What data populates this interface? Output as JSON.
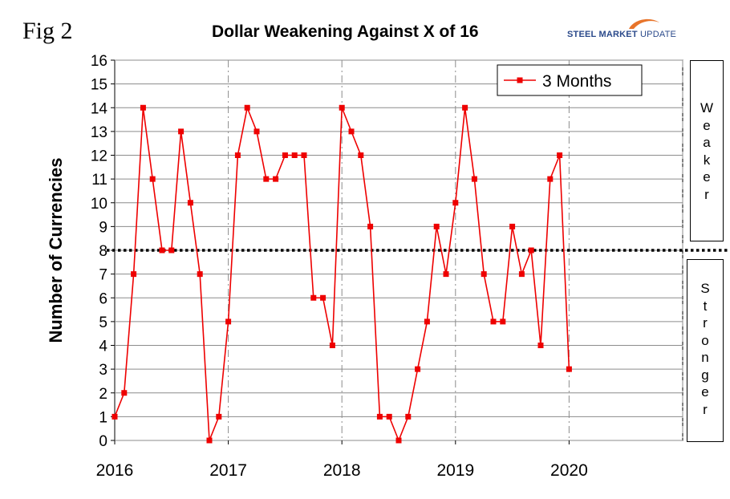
{
  "figure_label": "Fig 2",
  "brand": {
    "bold": "STEEL MARKET",
    "rest": " UPDATE",
    "swoosh_color": "#e8742a",
    "text_color": "#2b4a8b"
  },
  "side_labels": {
    "weaker": "Weaker",
    "stronger": "Stronger"
  },
  "chart_data": {
    "type": "line",
    "title": "Dollar Weakening Against X of 16",
    "xlabel": "",
    "ylabel": "Number of Currencies",
    "ylim": [
      0,
      16
    ],
    "yticks": [
      0,
      1,
      2,
      3,
      4,
      5,
      6,
      7,
      8,
      9,
      10,
      11,
      12,
      13,
      14,
      15,
      16
    ],
    "xlim": [
      "2016-01",
      "2021-01"
    ],
    "xtick_labels": [
      "2016",
      "2017",
      "2018",
      "2019",
      "2020"
    ],
    "gridlines": {
      "horizontal": true,
      "vertical_dashdot_at_years": true
    },
    "reference_line": {
      "y": 8,
      "style": "dotted",
      "color": "#000000"
    },
    "legend": {
      "position": "top-right",
      "entries": [
        "3 Months"
      ]
    },
    "series": [
      {
        "name": "3 Months",
        "color": "#ee0000",
        "marker": "square",
        "x": [
          "2016-01",
          "2016-02",
          "2016-03",
          "2016-04",
          "2016-05",
          "2016-06",
          "2016-07",
          "2016-08",
          "2016-09",
          "2016-10",
          "2016-11",
          "2016-12",
          "2017-01",
          "2017-02",
          "2017-03",
          "2017-04",
          "2017-05",
          "2017-06",
          "2017-07",
          "2017-08",
          "2017-09",
          "2017-10",
          "2017-11",
          "2017-12",
          "2018-01",
          "2018-02",
          "2018-03",
          "2018-04",
          "2018-05",
          "2018-06",
          "2018-07",
          "2018-08",
          "2018-09",
          "2018-10",
          "2018-11",
          "2018-12",
          "2019-01",
          "2019-02",
          "2019-03",
          "2019-04",
          "2019-05",
          "2019-06",
          "2019-07",
          "2019-08",
          "2019-09",
          "2019-10",
          "2019-11",
          "2019-12",
          "2020-01"
        ],
        "values": [
          1,
          2,
          7,
          14,
          11,
          8,
          8,
          13,
          10,
          7,
          0,
          1,
          5,
          12,
          14,
          13,
          11,
          11,
          12,
          12,
          12,
          6,
          6,
          4,
          14,
          13,
          12,
          9,
          1,
          1,
          0,
          1,
          3,
          5,
          9,
          7,
          10,
          14,
          11,
          7,
          5,
          5,
          9,
          7,
          8,
          4,
          11,
          12,
          3
        ]
      }
    ]
  }
}
